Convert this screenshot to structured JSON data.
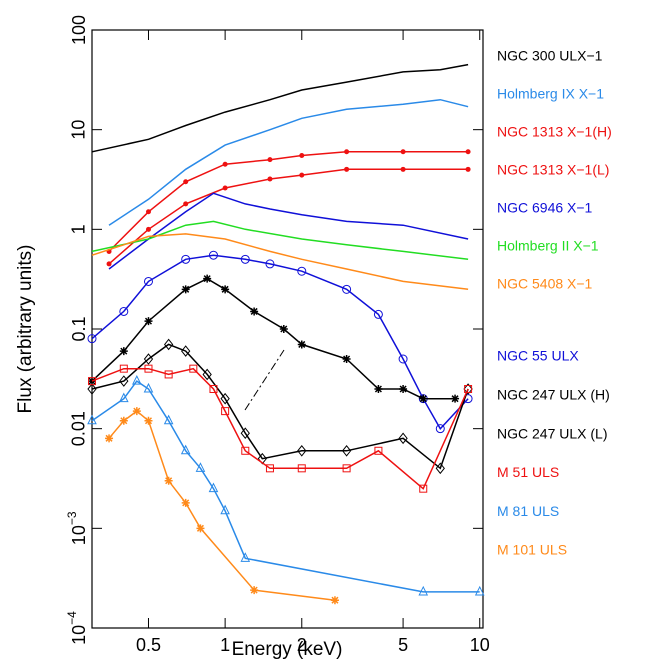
{
  "chart_data": {
    "type": "line",
    "xlabel": "Energy (keV)",
    "ylabel": "Flux (arbitrary units)",
    "xscale": "log",
    "yscale": "log",
    "xlim": [
      0.3,
      10.3
    ],
    "ylim": [
      0.0001,
      100
    ],
    "xticks": [
      0.5,
      1,
      2,
      5,
      10
    ],
    "yticks": [
      {
        "value": 0.0001,
        "label": "10−4"
      },
      {
        "value": 0.001,
        "label": "10−3"
      },
      0.01,
      0.1,
      1,
      10,
      100
    ],
    "series": [
      {
        "name": "NGC 300 ULX−1",
        "color": "#000000",
        "marker": "none",
        "x": [
          0.3,
          0.5,
          0.7,
          1,
          1.5,
          2,
          3,
          5,
          7,
          9
        ],
        "values": [
          6,
          8,
          11,
          15,
          20,
          25,
          30,
          38,
          40,
          45
        ]
      },
      {
        "name": "Holmberg IX X−1",
        "color": "#2a8ae8",
        "marker": "none",
        "x": [
          0.35,
          0.5,
          0.7,
          1,
          1.5,
          2,
          3,
          5,
          7,
          9
        ],
        "values": [
          1.1,
          2,
          4,
          7,
          10,
          13,
          16,
          18,
          20,
          17
        ]
      },
      {
        "name": "NGC 1313 X−1(H)",
        "color": "#ee1111",
        "marker": "circle",
        "x": [
          0.35,
          0.5,
          0.7,
          1,
          1.5,
          2,
          3,
          5,
          9
        ],
        "values": [
          0.6,
          1.5,
          3,
          4.5,
          5,
          5.5,
          6,
          6,
          6
        ]
      },
      {
        "name": "NGC 1313 X−1(L)",
        "color": "#ee1111",
        "marker": "circle",
        "x": [
          0.35,
          0.5,
          0.7,
          1,
          1.5,
          2,
          3,
          5,
          9
        ],
        "values": [
          0.45,
          1.0,
          1.8,
          2.6,
          3.2,
          3.5,
          4,
          4,
          4
        ]
      },
      {
        "name": "NGC 6946 X−1",
        "color": "#1010d8",
        "marker": "none",
        "x": [
          0.35,
          0.5,
          0.7,
          0.9,
          1.2,
          1.5,
          2,
          3,
          5,
          9
        ],
        "values": [
          0.4,
          0.8,
          1.5,
          2.3,
          1.8,
          1.6,
          1.4,
          1.2,
          1.1,
          0.8
        ]
      },
      {
        "name": "Holmberg II X−1",
        "color": "#22dd22",
        "marker": "none",
        "x": [
          0.3,
          0.5,
          0.7,
          0.9,
          1.2,
          2,
          3,
          5,
          9
        ],
        "values": [
          0.6,
          0.8,
          1.1,
          1.2,
          1.0,
          0.8,
          0.7,
          0.6,
          0.5
        ]
      },
      {
        "name": "NGC 5408 X−1",
        "color": "#ff8a1a",
        "marker": "none",
        "x": [
          0.3,
          0.4,
          0.5,
          0.7,
          1,
          1.5,
          2,
          3,
          5,
          9
        ],
        "values": [
          0.55,
          0.7,
          0.85,
          0.9,
          0.8,
          0.6,
          0.5,
          0.4,
          0.3,
          0.25
        ]
      },
      {
        "name": "NGC  55 ULX",
        "color": "#1010d8",
        "marker": "circle-open",
        "x": [
          0.3,
          0.4,
          0.5,
          0.7,
          0.9,
          1.2,
          1.5,
          2,
          3,
          4,
          5,
          6,
          7,
          9
        ],
        "values": [
          0.08,
          0.15,
          0.3,
          0.5,
          0.55,
          0.5,
          0.45,
          0.38,
          0.25,
          0.14,
          0.05,
          0.02,
          0.01,
          0.02
        ]
      },
      {
        "name": "NGC 247 ULX (H)",
        "color": "#000000",
        "marker": "star",
        "x": [
          0.3,
          0.4,
          0.5,
          0.7,
          0.85,
          1,
          1.3,
          1.7,
          2,
          3,
          4,
          5,
          6,
          8
        ],
        "values": [
          0.03,
          0.06,
          0.12,
          0.25,
          0.32,
          0.25,
          0.15,
          0.1,
          0.07,
          0.05,
          0.025,
          0.025,
          0.02,
          0.02
        ]
      },
      {
        "name": "NGC 247 ULX (L)",
        "color": "#000000",
        "marker": "diamond",
        "x": [
          0.3,
          0.4,
          0.5,
          0.6,
          0.7,
          0.85,
          1,
          1.2,
          1.4,
          2,
          3,
          5,
          7,
          9
        ],
        "values": [
          0.025,
          0.03,
          0.05,
          0.07,
          0.06,
          0.035,
          0.02,
          0.009,
          0.005,
          0.006,
          0.006,
          0.008,
          0.004,
          0.025
        ]
      },
      {
        "name": "M 51 ULS",
        "color": "#ee1111",
        "marker": "square",
        "x": [
          0.3,
          0.4,
          0.5,
          0.6,
          0.75,
          0.9,
          1,
          1.2,
          1.5,
          2,
          3,
          4,
          6,
          9
        ],
        "values": [
          0.03,
          0.04,
          0.04,
          0.035,
          0.04,
          0.025,
          0.015,
          0.006,
          0.004,
          0.004,
          0.004,
          0.006,
          0.0025,
          0.025
        ]
      },
      {
        "name": "M  81 ULS",
        "color": "#2a8ae8",
        "marker": "triangle",
        "x": [
          0.3,
          0.4,
          0.45,
          0.5,
          0.6,
          0.7,
          0.8,
          0.9,
          1,
          1.2,
          6,
          10
        ],
        "values": [
          0.012,
          0.02,
          0.03,
          0.025,
          0.012,
          0.006,
          0.004,
          0.0025,
          0.0015,
          0.0005,
          0.00023,
          0.00023
        ]
      },
      {
        "name": "M 101 ULS",
        "color": "#ff8a1a",
        "marker": "star",
        "x": [
          0.35,
          0.4,
          0.45,
          0.5,
          0.6,
          0.7,
          0.8,
          1.3,
          2.7
        ],
        "values": [
          0.008,
          0.012,
          0.015,
          0.012,
          0.003,
          0.0018,
          0.001,
          0.00024,
          0.00019
        ]
      }
    ]
  }
}
